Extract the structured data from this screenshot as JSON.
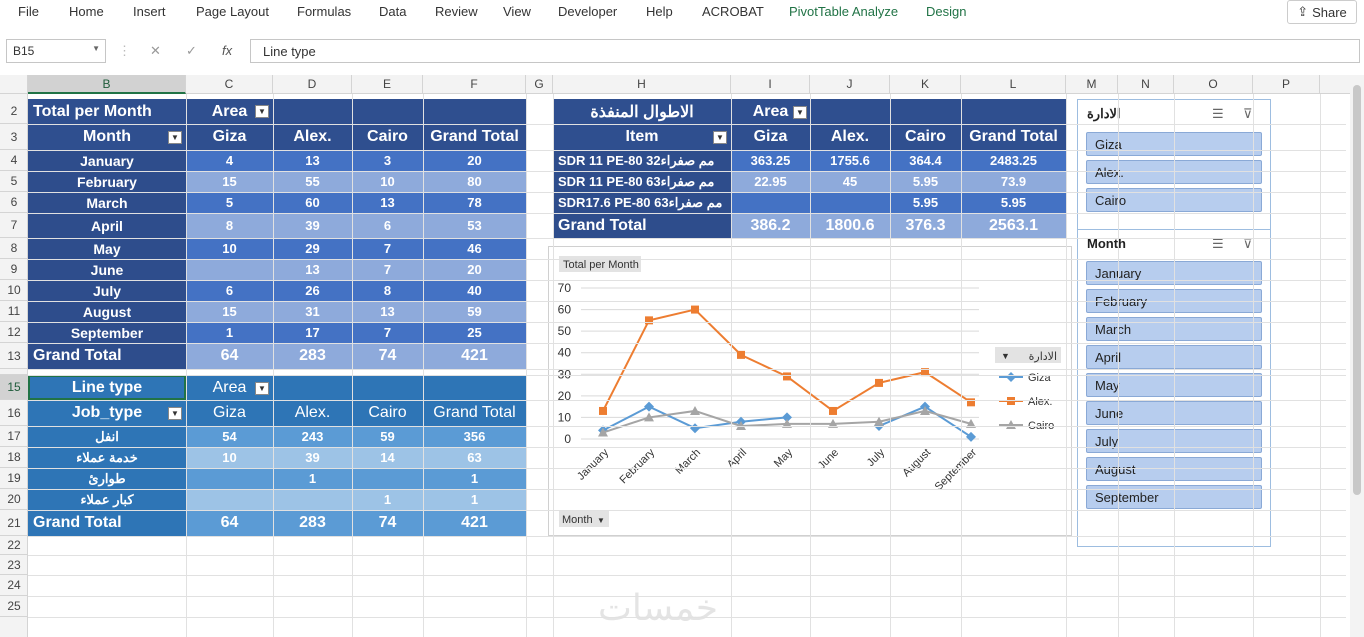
{
  "ribbon": {
    "tabs": [
      "File",
      "Home",
      "Insert",
      "Page Layout",
      "Formulas",
      "Data",
      "Review",
      "View",
      "Developer",
      "Help",
      "ACROBAT",
      "PivotTable Analyze",
      "Design"
    ],
    "share": "Share"
  },
  "formula": {
    "namebox": "B15",
    "content": "Line type"
  },
  "columns": [
    "B",
    "C",
    "D",
    "E",
    "F",
    "G",
    "H",
    "I",
    "J",
    "K",
    "L",
    "M",
    "N",
    "O",
    "P"
  ],
  "rows": [
    "2",
    "3",
    "4",
    "5",
    "6",
    "7",
    "8",
    "9",
    "10",
    "11",
    "12",
    "13",
    "14",
    "15",
    "16",
    "17",
    "18",
    "19",
    "20",
    "21",
    "22",
    "23",
    "24",
    "25"
  ],
  "pivot1": {
    "title": "Total per Month",
    "area": "Area",
    "rowfield": "Month",
    "cols": [
      "Giza",
      "Alex.",
      "Cairo",
      "Grand Total"
    ],
    "rows": [
      {
        "label": "January",
        "v": [
          "4",
          "13",
          "3",
          "20"
        ]
      },
      {
        "label": "February",
        "v": [
          "15",
          "55",
          "10",
          "80"
        ]
      },
      {
        "label": "March",
        "v": [
          "5",
          "60",
          "13",
          "78"
        ]
      },
      {
        "label": "April",
        "v": [
          "8",
          "39",
          "6",
          "53"
        ]
      },
      {
        "label": "May",
        "v": [
          "10",
          "29",
          "7",
          "46"
        ]
      },
      {
        "label": "June",
        "v": [
          "",
          "13",
          "7",
          "20"
        ]
      },
      {
        "label": "July",
        "v": [
          "6",
          "26",
          "8",
          "40"
        ]
      },
      {
        "label": "August",
        "v": [
          "15",
          "31",
          "13",
          "59"
        ]
      },
      {
        "label": "September",
        "v": [
          "1",
          "17",
          "7",
          "25"
        ]
      }
    ],
    "total": {
      "label": "Grand Total",
      "v": [
        "64",
        "283",
        "74",
        "421"
      ]
    }
  },
  "pivot2": {
    "title": "Line type",
    "area": "Area",
    "rowfield": "Job_type",
    "cols": [
      "Giza",
      "Alex.",
      "Cairo",
      "Grand Total"
    ],
    "rows": [
      {
        "label": "انفل",
        "v": [
          "54",
          "243",
          "59",
          "356"
        ]
      },
      {
        "label": "خدمة عملاء",
        "v": [
          "10",
          "39",
          "14",
          "63"
        ]
      },
      {
        "label": "طوارئ",
        "v": [
          "",
          "1",
          "",
          "1"
        ]
      },
      {
        "label": "كبار عملاء",
        "v": [
          "",
          "",
          "1",
          "1"
        ]
      }
    ],
    "total": {
      "label": "Grand Total",
      "v": [
        "64",
        "283",
        "74",
        "421"
      ]
    }
  },
  "pivot3": {
    "title": "الاطوال المنفذة",
    "area": "Area",
    "rowfield": "Item",
    "cols": [
      "Giza",
      "Alex.",
      "Cairo",
      "Grand Total"
    ],
    "rows": [
      {
        "label": "SDR 11 PE-80 32مم صفراء",
        "v": [
          "363.25",
          "1755.6",
          "364.4",
          "2483.25"
        ]
      },
      {
        "label": "SDR 11 PE-80 63مم صفراء",
        "v": [
          "22.95",
          "45",
          "5.95",
          "73.9"
        ]
      },
      {
        "label": "SDR17.6 PE-80 63مم صفراء",
        "v": [
          "",
          "",
          "5.95",
          "5.95"
        ]
      }
    ],
    "total": {
      "label": "Grand Total",
      "v": [
        "386.2",
        "1800.6",
        "376.3",
        "2563.1"
      ]
    }
  },
  "chart_data": {
    "type": "line",
    "title": "Total per Month",
    "categories": [
      "January",
      "February",
      "March",
      "April",
      "May",
      "June",
      "July",
      "August",
      "September"
    ],
    "series": [
      {
        "name": "Giza",
        "color": "#5b9bd5",
        "marker": "diamond",
        "values": [
          4,
          15,
          5,
          8,
          10,
          null,
          6,
          15,
          1
        ]
      },
      {
        "name": "Alex.",
        "color": "#ed7d31",
        "marker": "square",
        "values": [
          13,
          55,
          60,
          39,
          29,
          13,
          26,
          31,
          17
        ]
      },
      {
        "name": "Cairo",
        "color": "#a5a5a5",
        "marker": "triangle",
        "values": [
          3,
          10,
          13,
          6,
          7,
          7,
          8,
          13,
          7
        ]
      }
    ],
    "ylim": [
      0,
      70
    ],
    "yticks": [
      "0",
      "10",
      "20",
      "30",
      "40",
      "50",
      "60",
      "70"
    ],
    "legend_title": "الادارة",
    "axis_button": "Month",
    "grid": true,
    "legend_position": "right"
  },
  "slicer1": {
    "title": "الادارة",
    "items": [
      "Giza",
      "Alex.",
      "Cairo"
    ]
  },
  "slicer2": {
    "title": "Month",
    "items": [
      "January",
      "February",
      "March",
      "April",
      "May",
      "June",
      "July",
      "August",
      "September"
    ]
  },
  "watermark": "خمسات"
}
